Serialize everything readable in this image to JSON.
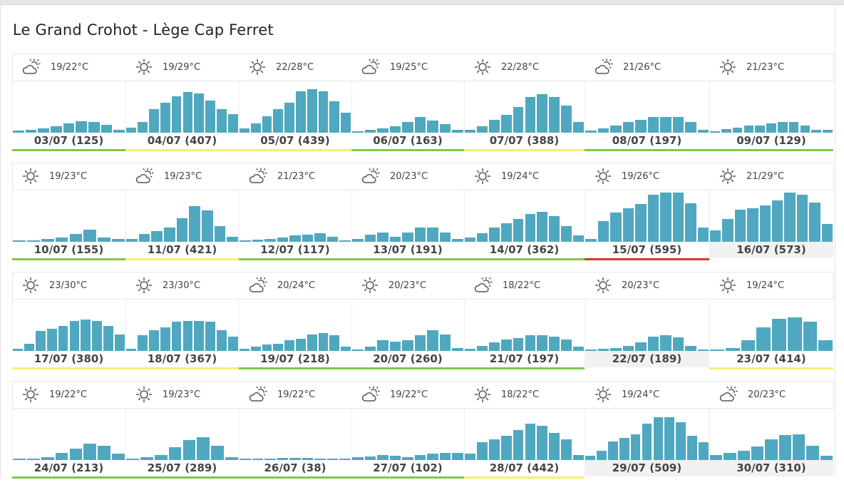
{
  "page": {
    "title": "Le Grand Crohot - Lège Cap Ferret"
  },
  "colors": {
    "bar": "#4fa8bf",
    "green": "#7ec84c",
    "yellow": "#f4ef75",
    "red": "#d93a2b",
    "none": "#f1f1f1"
  },
  "days": [
    {
      "icon": "partly-cloudy-icon",
      "temp": "19/22°C",
      "label": "03/07 (125)",
      "level": "green",
      "bars": [
        0.04,
        0.06,
        0.08,
        0.12,
        0.18,
        0.22,
        0.2,
        0.15,
        0.06
      ]
    },
    {
      "icon": "sun-icon",
      "temp": "19/29°C",
      "label": "04/07 (407)",
      "level": "yellow",
      "bars": [
        0.1,
        0.2,
        0.45,
        0.58,
        0.7,
        0.78,
        0.76,
        0.62,
        0.45,
        0.36
      ]
    },
    {
      "icon": "sun-icon",
      "temp": "22/28°C",
      "label": "05/07 (439)",
      "level": "yellow",
      "bars": [
        0.08,
        0.18,
        0.32,
        0.45,
        0.58,
        0.8,
        0.84,
        0.8,
        0.6,
        0.38
      ]
    },
    {
      "icon": "partly-cloudy-icon",
      "temp": "19/25°C",
      "label": "06/07 (163)",
      "level": "green",
      "bars": [
        0.03,
        0.05,
        0.08,
        0.12,
        0.2,
        0.3,
        0.24,
        0.16,
        0.06
      ]
    },
    {
      "icon": "sun-icon",
      "temp": "22/28°C",
      "label": "07/07 (388)",
      "level": "yellow",
      "bars": [
        0.06,
        0.12,
        0.25,
        0.35,
        0.5,
        0.68,
        0.74,
        0.68,
        0.52,
        0.2
      ]
    },
    {
      "icon": "partly-cloudy-icon",
      "temp": "21/26°C",
      "label": "08/07 (197)",
      "level": "green",
      "bars": [
        0.04,
        0.08,
        0.14,
        0.2,
        0.25,
        0.3,
        0.3,
        0.3,
        0.2,
        0.06
      ]
    },
    {
      "icon": "sun-icon",
      "temp": "21/23°C",
      "label": "09/07 (129)",
      "level": "green",
      "bars": [
        0.03,
        0.07,
        0.1,
        0.14,
        0.14,
        0.18,
        0.2,
        0.2,
        0.14,
        0.06,
        0.06
      ]
    },
    {
      "icon": "sun-icon",
      "temp": "19/23°C",
      "label": "10/07 (155)",
      "level": "green",
      "bars": [
        0.03,
        0.03,
        0.05,
        0.08,
        0.15,
        0.24,
        0.08,
        0.06
      ]
    },
    {
      "icon": "partly-cloudy-icon",
      "temp": "19/23°C",
      "label": "11/07 (421)",
      "level": "yellow",
      "bars": [
        0.06,
        0.15,
        0.2,
        0.28,
        0.45,
        0.68,
        0.6,
        0.3,
        0.1
      ]
    },
    {
      "icon": "partly-cloudy-icon",
      "temp": "21/23°C",
      "label": "12/07 (117)",
      "level": "green",
      "bars": [
        0.03,
        0.04,
        0.06,
        0.08,
        0.12,
        0.14,
        0.17,
        0.1,
        0.03
      ]
    },
    {
      "icon": "partly-cloudy-icon",
      "temp": "20/23°C",
      "label": "13/07 (191)",
      "level": "green",
      "bars": [
        0.06,
        0.14,
        0.18,
        0.1,
        0.18,
        0.28,
        0.28,
        0.18,
        0.06
      ]
    },
    {
      "icon": "sun-icon",
      "temp": "19/24°C",
      "label": "14/07 (362)",
      "level": "green",
      "bars": [
        0.08,
        0.16,
        0.28,
        0.36,
        0.44,
        0.54,
        0.58,
        0.5,
        0.3,
        0.12
      ]
    },
    {
      "icon": "sun-icon",
      "temp": "19/26°C",
      "label": "15/07 (595)",
      "level": "red",
      "bars": [
        0.06,
        0.4,
        0.56,
        0.64,
        0.72,
        0.9,
        0.95,
        0.94,
        0.74,
        0.28
      ]
    },
    {
      "icon": "sun-icon",
      "temp": "21/29°C",
      "label": "16/07 (573)",
      "level": "none",
      "bars": [
        0.22,
        0.44,
        0.62,
        0.64,
        0.7,
        0.8,
        0.94,
        0.9,
        0.76,
        0.34
      ]
    },
    {
      "icon": "sun-icon",
      "temp": "23/30°C",
      "label": "17/07 (380)",
      "level": "yellow",
      "bars": [
        0.04,
        0.14,
        0.38,
        0.42,
        0.48,
        0.58,
        0.6,
        0.58,
        0.48,
        0.32
      ]
    },
    {
      "icon": "sun-icon",
      "temp": "23/30°C",
      "label": "18/07 (367)",
      "level": "yellow",
      "bars": [
        0.04,
        0.3,
        0.4,
        0.45,
        0.56,
        0.58,
        0.58,
        0.56,
        0.4,
        0.28
      ]
    },
    {
      "icon": "partly-cloudy-icon",
      "temp": "20/24°C",
      "label": "19/07 (218)",
      "level": "green",
      "bars": [
        0.04,
        0.08,
        0.12,
        0.14,
        0.2,
        0.24,
        0.32,
        0.34,
        0.3,
        0.08
      ]
    },
    {
      "icon": "sun-icon",
      "temp": "20/23°C",
      "label": "20/07 (260)",
      "level": "green",
      "bars": [
        0.03,
        0.08,
        0.2,
        0.18,
        0.2,
        0.3,
        0.4,
        0.32,
        0.06
      ]
    },
    {
      "icon": "partly-cloudy-icon",
      "temp": "18/22°C",
      "label": "21/07 (197)",
      "level": "green",
      "bars": [
        0.04,
        0.1,
        0.16,
        0.22,
        0.25,
        0.3,
        0.3,
        0.28,
        0.22,
        0.08
      ]
    },
    {
      "icon": "sun-icon",
      "temp": "20/23°C",
      "label": "22/07 (189)",
      "level": "none",
      "bars": [
        0.02,
        0.04,
        0.06,
        0.1,
        0.16,
        0.28,
        0.3,
        0.26,
        0.1,
        0.02
      ]
    },
    {
      "icon": "sun-icon",
      "temp": "19/24°C",
      "label": "23/07 (414)",
      "level": "yellow",
      "bars": [
        0.03,
        0.06,
        0.2,
        0.45,
        0.62,
        0.64,
        0.56,
        0.2
      ]
    },
    {
      "icon": "sun-icon",
      "temp": "19/22°C",
      "label": "24/07 (213)",
      "level": "green",
      "bars": [
        0.03,
        0.03,
        0.05,
        0.14,
        0.22,
        0.32,
        0.27,
        0.13
      ]
    },
    {
      "icon": "sun-icon",
      "temp": "19/23°C",
      "label": "25/07 (289)",
      "level": "green",
      "bars": [
        0.03,
        0.06,
        0.1,
        0.25,
        0.38,
        0.44,
        0.28,
        0.05
      ]
    },
    {
      "icon": "partly-cloudy-icon",
      "temp": "19/22°C",
      "label": "26/07 (38)",
      "level": "green",
      "bars": [
        0.02,
        0.02,
        0.03,
        0.04,
        0.04,
        0.04,
        0.03,
        0.02,
        0.02
      ]
    },
    {
      "icon": "partly-cloudy-icon",
      "temp": "19/22°C",
      "label": "27/07 (102)",
      "level": "green",
      "bars": [
        0.06,
        0.07,
        0.09,
        0.08,
        0.06,
        0.09,
        0.12,
        0.14,
        0.14
      ]
    },
    {
      "icon": "sun-icon",
      "temp": "18/22°C",
      "label": "28/07 (442)",
      "level": "yellow",
      "bars": [
        0.12,
        0.35,
        0.4,
        0.46,
        0.58,
        0.7,
        0.66,
        0.52,
        0.4,
        0.1
      ]
    },
    {
      "icon": "sun-icon",
      "temp": "19/24°C",
      "label": "29/07 (509)",
      "level": "none",
      "bars": [
        0.08,
        0.18,
        0.36,
        0.42,
        0.5,
        0.7,
        0.82,
        0.82,
        0.72,
        0.46,
        0.34
      ]
    },
    {
      "icon": "partly-cloudy-icon",
      "temp": "20/23°C",
      "label": "30/07 (310)",
      "level": "none",
      "bars": [
        0.1,
        0.14,
        0.18,
        0.26,
        0.4,
        0.48,
        0.5,
        0.28,
        0.08
      ]
    }
  ]
}
